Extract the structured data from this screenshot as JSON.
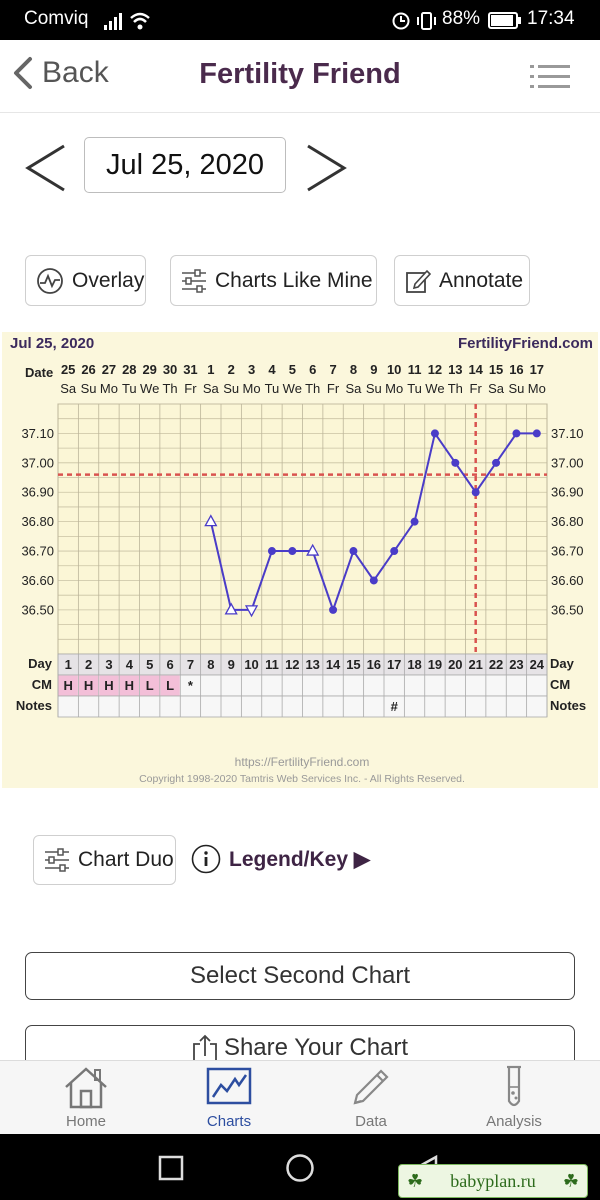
{
  "status_bar": {
    "carrier": "Comviq",
    "battery": "88%",
    "time": "17:34"
  },
  "header": {
    "back_label": "Back",
    "title": "Fertility Friend"
  },
  "date_nav": {
    "date": "Jul 25, 2020"
  },
  "actions": {
    "overlay": "Overlay",
    "charts_like_mine": "Charts Like Mine",
    "annotate": "Annotate"
  },
  "chart_data": {
    "type": "line",
    "header_left": "Jul 25, 2020",
    "header_right": "FertilityFriend.com",
    "date_row_label": "Date",
    "dates": [
      "25",
      "26",
      "27",
      "28",
      "29",
      "30",
      "31",
      "1",
      "2",
      "3",
      "4",
      "5",
      "6",
      "7",
      "8",
      "9",
      "10",
      "11",
      "12",
      "13",
      "14",
      "15",
      "16",
      "17"
    ],
    "weekdays": [
      "Sa",
      "Su",
      "Mo",
      "Tu",
      "We",
      "Th",
      "Fr",
      "Sa",
      "Su",
      "Mo",
      "Tu",
      "We",
      "Th",
      "Fr",
      "Sa",
      "Su",
      "Mo",
      "Tu",
      "We",
      "Th",
      "Fr",
      "Sa",
      "Su",
      "Mo"
    ],
    "day_row_label": "Day",
    "days": [
      "1",
      "2",
      "3",
      "4",
      "5",
      "6",
      "7",
      "8",
      "9",
      "10",
      "11",
      "12",
      "13",
      "14",
      "15",
      "16",
      "17",
      "18",
      "19",
      "20",
      "21",
      "22",
      "23",
      "24"
    ],
    "cm_row_label": "CM",
    "cm": [
      "H",
      "H",
      "H",
      "H",
      "L",
      "L",
      "*",
      "",
      "",
      "",
      "",
      "",
      "",
      "",
      "",
      "",
      "",
      "",
      "",
      "",
      "",
      "",
      "",
      ""
    ],
    "cm_highlight": [
      true,
      true,
      true,
      true,
      true,
      true,
      false,
      false,
      false,
      false,
      false,
      false,
      false,
      false,
      false,
      false,
      false,
      false,
      false,
      false,
      false,
      false,
      false,
      false
    ],
    "notes_row_label": "Notes",
    "notes": [
      "",
      "",
      "",
      "",
      "",
      "",
      "",
      "",
      "",
      "",
      "",
      "",
      "",
      "",
      "",
      "",
      "#",
      "",
      "",
      "",
      "",
      "",
      "",
      ""
    ],
    "y_ticks": [
      "37.10",
      "37.00",
      "36.90",
      "36.80",
      "36.70",
      "36.60",
      "36.50"
    ],
    "ylim": [
      36.35,
      37.2
    ],
    "temps": [
      null,
      null,
      null,
      null,
      null,
      null,
      null,
      36.8,
      36.5,
      36.5,
      36.7,
      36.7,
      36.7,
      36.5,
      36.7,
      36.6,
      36.7,
      36.8,
      37.1,
      37.0,
      36.9,
      37.0,
      37.1,
      37.1
    ],
    "open_markers": [
      8,
      9,
      10,
      13
    ],
    "open_marker_types": [
      "up",
      "up",
      "down",
      "up"
    ],
    "coverline": 36.96,
    "ovulation_day": 21,
    "series_color": "#4a3cc8",
    "coverline_color": "#d9534f",
    "footer_url": "https://FertilityFriend.com",
    "copyright": "Copyright 1998-2020 Tamtris Web Services Inc. - All Rights Reserved."
  },
  "chart_duo": {
    "label": "Chart Duo",
    "legend": "Legend/Key ▶"
  },
  "buttons": {
    "select_second": "Select Second Chart",
    "share": "Share Your Chart"
  },
  "tabs": [
    {
      "label": "Home",
      "icon": "home-icon"
    },
    {
      "label": "Charts",
      "icon": "chart-icon"
    },
    {
      "label": "Data",
      "icon": "pencil-icon"
    },
    {
      "label": "Analysis",
      "icon": "test-tube-icon"
    }
  ],
  "watermark": {
    "text": "babyplan.ru"
  },
  "colors": {
    "brand": "#4a2a4c",
    "active_tab": "#2d4ea0",
    "chart_bg": "#fbf7dc",
    "cm_pink": "#f3bfd8"
  }
}
